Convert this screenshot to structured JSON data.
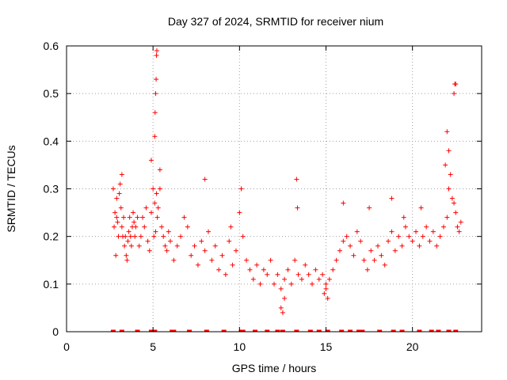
{
  "chart_data": {
    "type": "scatter",
    "title": "Day 327 of 2024, SRMTID for receiver nium",
    "xlabel": "GPS time / hours",
    "ylabel": "SRMTID / TECUs",
    "xlim": [
      0,
      24
    ],
    "ylim": [
      0,
      0.6
    ],
    "xticks": [
      0,
      5,
      10,
      15,
      20
    ],
    "yticks": [
      0,
      0.1,
      0.2,
      0.3,
      0.4,
      0.5,
      0.6
    ],
    "xtick_labels": [
      "0",
      "5",
      "10",
      "15",
      "20"
    ],
    "ytick_labels": [
      "0",
      "0.1",
      "0.2",
      "0.3",
      "0.4",
      "0.5",
      "0.6"
    ],
    "grid": true,
    "marker": "+",
    "series_color": "#ff0000",
    "series": [
      {
        "name": "SRMTID",
        "x": [
          2.7,
          2.75,
          2.8,
          2.85,
          2.9,
          2.95,
          3.0,
          3.05,
          3.1,
          3.15,
          3.2,
          3.25,
          3.3,
          3.35,
          3.4,
          3.45,
          3.5,
          3.55,
          3.6,
          3.65,
          3.7,
          3.75,
          3.8,
          3.85,
          3.9,
          3.95,
          4.0,
          4.1,
          4.2,
          4.3,
          4.4,
          4.5,
          4.6,
          4.7,
          4.8,
          4.9,
          5.0,
          5.05,
          5.1,
          5.15,
          5.2,
          5.25,
          5.3,
          5.4,
          5.5,
          5.6,
          5.7,
          5.8,
          5.9,
          6.0,
          6.2,
          6.4,
          6.6,
          6.8,
          7.0,
          7.2,
          7.4,
          7.6,
          7.8,
          8.0,
          8.2,
          8.4,
          8.6,
          8.8,
          9.0,
          9.2,
          9.4,
          9.6,
          9.8,
          10.0,
          10.2,
          10.4,
          10.6,
          10.8,
          11.0,
          11.2,
          11.4,
          11.6,
          11.8,
          12.0,
          12.2,
          12.4,
          12.6,
          12.8,
          13.0,
          13.2,
          13.4,
          13.6,
          13.8,
          14.0,
          14.2,
          14.4,
          14.6,
          14.8,
          15.0,
          15.2,
          15.4,
          15.6,
          15.8,
          16.0,
          16.2,
          16.4,
          16.6,
          16.8,
          17.0,
          17.2,
          17.4,
          17.6,
          17.8,
          18.0,
          18.2,
          18.4,
          18.6,
          18.8,
          19.0,
          19.2,
          19.4,
          19.6,
          19.8,
          20.0,
          20.2,
          20.4,
          20.6,
          20.8,
          21.0,
          21.2,
          21.4,
          21.6,
          21.8,
          22.0,
          22.1,
          22.2,
          22.3,
          22.4,
          22.5,
          22.6,
          22.7,
          22.8,
          5.1,
          5.12,
          5.15,
          5.18,
          5.2,
          5.22,
          13.3,
          13.35,
          22.4,
          22.45,
          22.5,
          2.9,
          3.2,
          4.9,
          5.4,
          21.9,
          22.0,
          22.1,
          12.4,
          12.5,
          12.6,
          14.9,
          15.0,
          15.1,
          8.0,
          9.5,
          10.1,
          16.0,
          17.5,
          18.8,
          19.5,
          20.5
        ],
        "y": [
          0.3,
          0.22,
          0.25,
          0.16,
          0.28,
          0.23,
          0.2,
          0.29,
          0.31,
          0.26,
          0.22,
          0.2,
          0.24,
          0.18,
          0.2,
          0.16,
          0.15,
          0.19,
          0.21,
          0.24,
          0.2,
          0.18,
          0.22,
          0.25,
          0.23,
          0.2,
          0.22,
          0.24,
          0.18,
          0.2,
          0.24,
          0.22,
          0.26,
          0.19,
          0.17,
          0.25,
          0.3,
          0.2,
          0.27,
          0.21,
          0.29,
          0.24,
          0.26,
          0.3,
          0.22,
          0.2,
          0.18,
          0.17,
          0.21,
          0.19,
          0.15,
          0.18,
          0.2,
          0.24,
          0.22,
          0.16,
          0.18,
          0.14,
          0.19,
          0.17,
          0.21,
          0.15,
          0.18,
          0.13,
          0.16,
          0.12,
          0.19,
          0.14,
          0.17,
          0.25,
          0.2,
          0.15,
          0.13,
          0.11,
          0.14,
          0.1,
          0.13,
          0.12,
          0.15,
          0.1,
          0.12,
          0.09,
          0.11,
          0.13,
          0.1,
          0.15,
          0.12,
          0.11,
          0.14,
          0.12,
          0.1,
          0.13,
          0.11,
          0.12,
          0.1,
          0.11,
          0.13,
          0.15,
          0.17,
          0.19,
          0.2,
          0.18,
          0.16,
          0.21,
          0.19,
          0.15,
          0.13,
          0.17,
          0.15,
          0.18,
          0.16,
          0.14,
          0.19,
          0.21,
          0.17,
          0.2,
          0.18,
          0.22,
          0.2,
          0.19,
          0.21,
          0.18,
          0.2,
          0.22,
          0.19,
          0.21,
          0.18,
          0.2,
          0.22,
          0.24,
          0.3,
          0.33,
          0.28,
          0.27,
          0.25,
          0.22,
          0.21,
          0.23,
          0.41,
          0.46,
          0.5,
          0.53,
          0.58,
          0.59,
          0.32,
          0.26,
          0.5,
          0.52,
          0.52,
          0.24,
          0.33,
          0.36,
          0.34,
          0.35,
          0.42,
          0.38,
          0.05,
          0.04,
          0.07,
          0.08,
          0.09,
          0.07,
          0.32,
          0.22,
          0.3,
          0.27,
          0.26,
          0.28,
          0.24,
          0.26
        ]
      }
    ],
    "bottom_markers_x": [
      2.7,
      3.2,
      4.1,
      4.9,
      5.1,
      6.1,
      6.2,
      7.1,
      8.1,
      9.1,
      10.1,
      10.2,
      10.9,
      11.6,
      12.2,
      12.5,
      13.3,
      14.1,
      14.6,
      15.1,
      15.9,
      16.4,
      16.9,
      17.1,
      18.1,
      18.9,
      19.4,
      20.4,
      21.1,
      21.5,
      22.1,
      22.5
    ]
  }
}
